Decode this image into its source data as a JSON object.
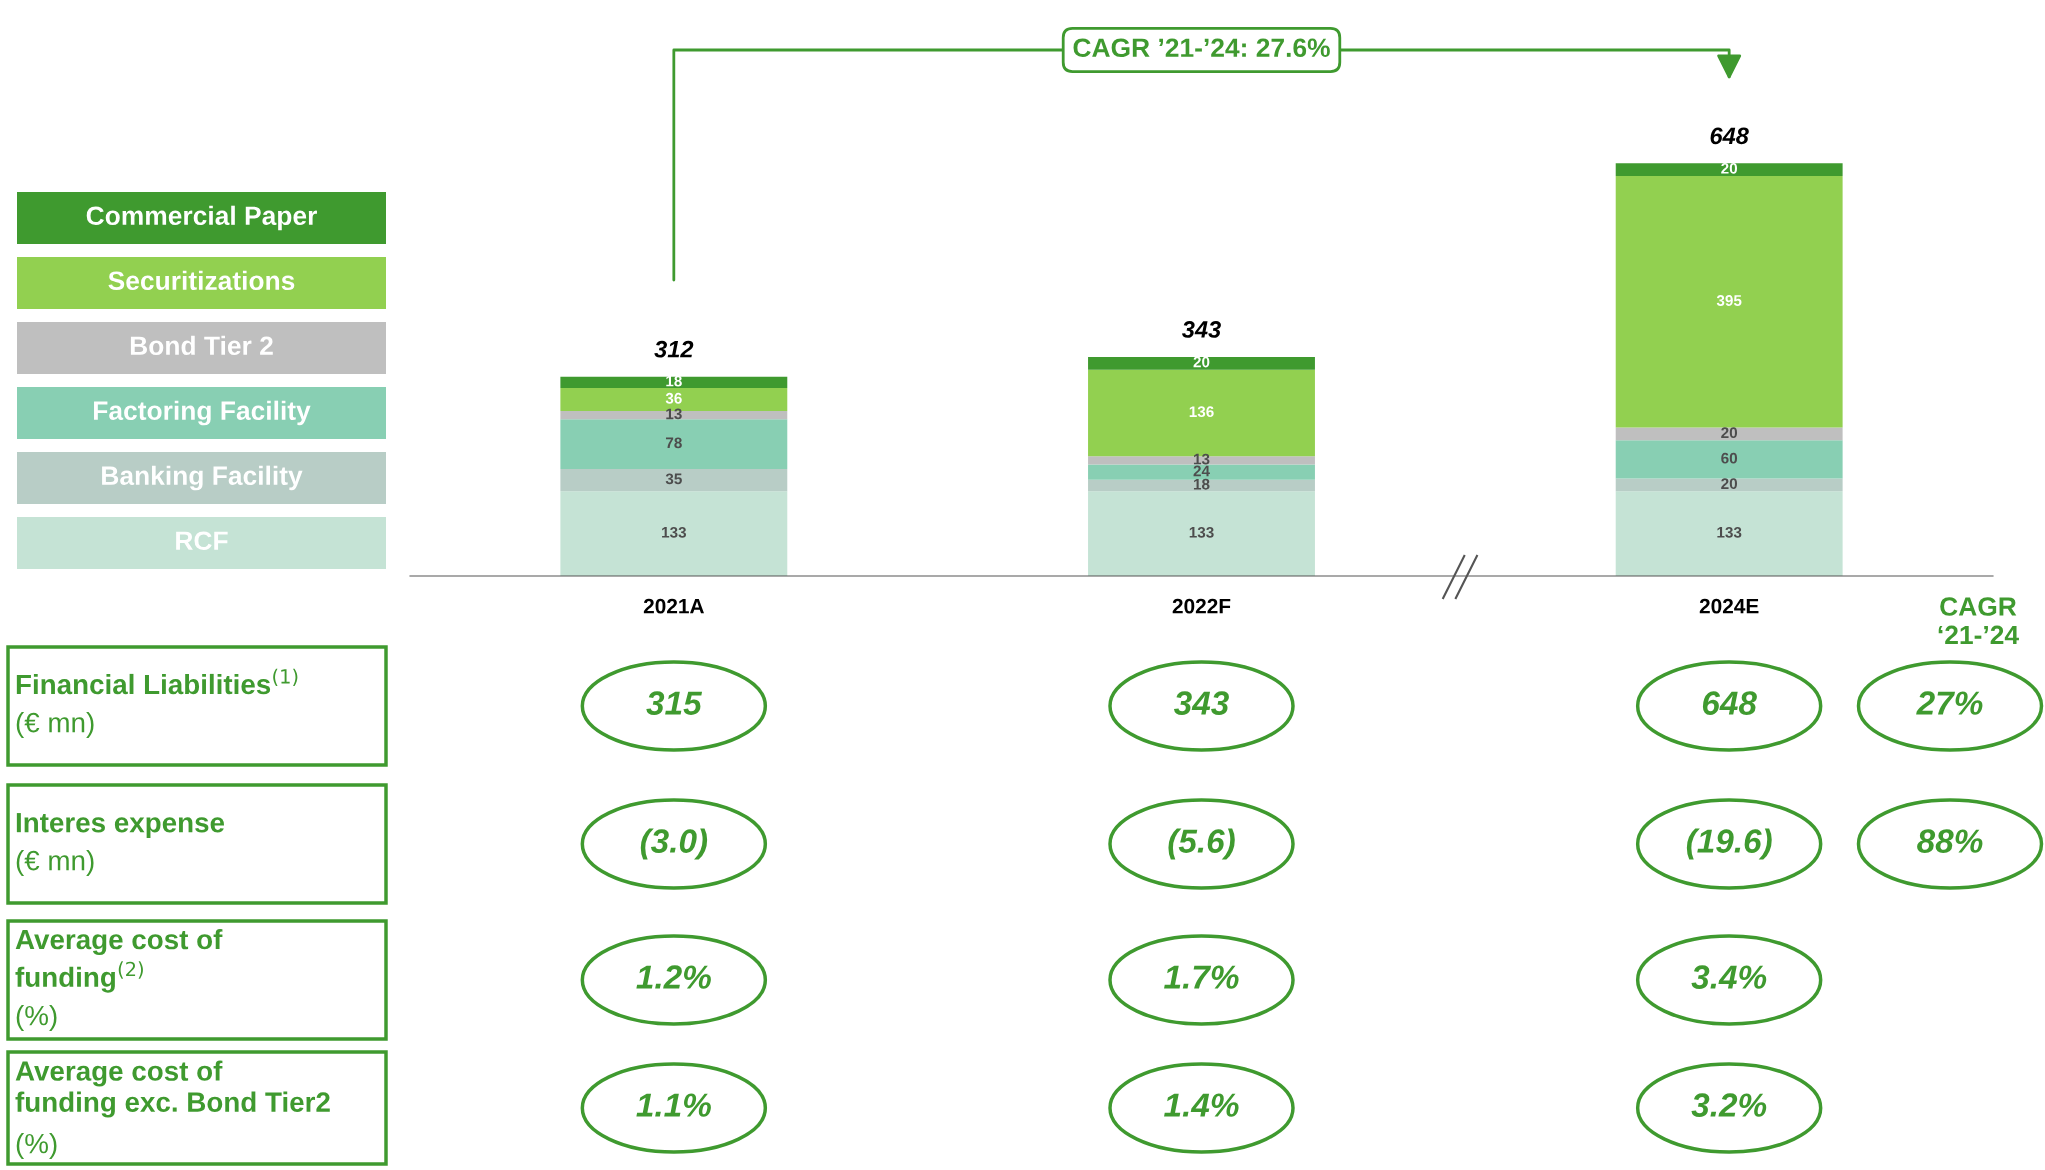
{
  "chart_data": {
    "type": "bar",
    "stacked": true,
    "data_labels": true,
    "legend": "left",
    "grid": false,
    "tick_labels": "x",
    "categories": [
      "2021A",
      "2022F",
      "2024E"
    ],
    "series": [
      {
        "name": "RCF",
        "color": "#c5e3d5",
        "values": [
          133,
          133,
          133
        ]
      },
      {
        "name": "Banking Facility",
        "color": "#b8cdc6",
        "values": [
          35,
          18,
          20
        ]
      },
      {
        "name": "Factoring Facility",
        "color": "#88cfb3",
        "values": [
          78,
          24,
          60
        ]
      },
      {
        "name": "Bond Tier 2",
        "color": "#bfbfbf",
        "values": [
          13,
          13,
          20
        ]
      },
      {
        "name": "Securitizations",
        "color": "#92d050",
        "values": [
          36,
          136,
          395
        ]
      },
      {
        "name": "Commercial Paper",
        "color": "#3f9a2f",
        "values": [
          18,
          20,
          20
        ]
      }
    ],
    "totals": [
      "312",
      "343",
      "648"
    ],
    "annotations": [
      "CAGR ’21-’24: 27.6%",
      "CAGR\n‘21-’24",
      "Financial Liabilities$^{(1)}$\n(€ mn)",
      "315",
      "343",
      "648",
      "27%",
      "Interes expense\n(€ mn)",
      "(3.0)",
      "(5.6)",
      "(19.6)",
      "88%",
      "Average cost of\nfunding$^{(2)}$\n(%)",
      "1.2%",
      "1.7%",
      "3.4%",
      "Average cost of\nfunding exc. Bond Tier2\n(%)",
      "1.1%",
      "1.4%",
      "3.2%"
    ]
  }
}
